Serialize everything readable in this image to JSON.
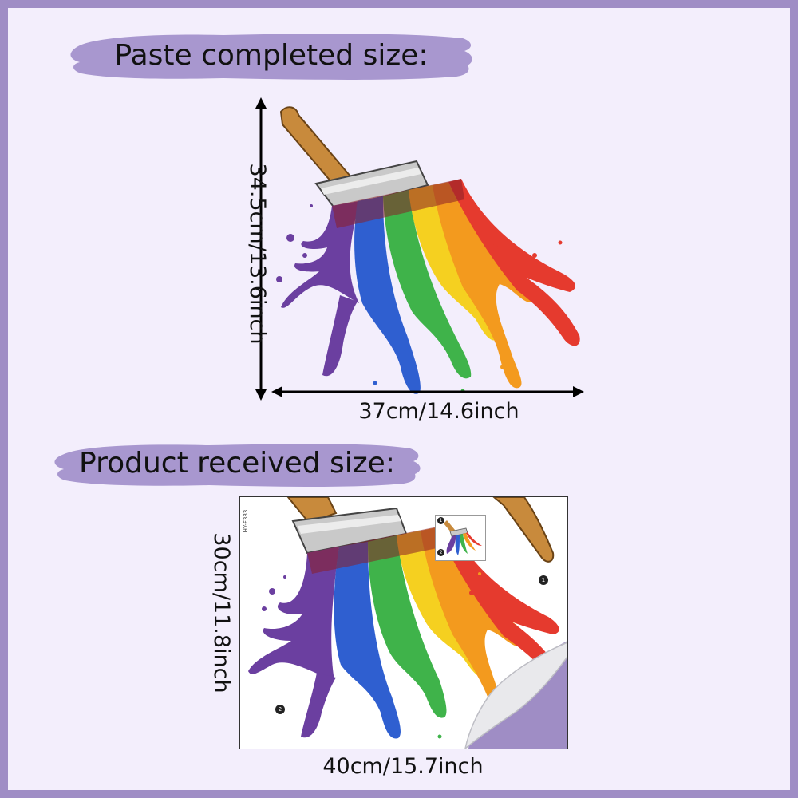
{
  "banners": {
    "top": "Paste completed size:",
    "bottom": "Product  received size:"
  },
  "dimensions": {
    "completed_height": "34.5cm/13.6inch",
    "completed_width": "37cm/14.6inch",
    "received_height": "30cm/11.8inch",
    "received_width": "40cm/15.7inch"
  },
  "sheet": {
    "model_code": "HY-F383",
    "marker_1": "1",
    "marker_2": "2"
  },
  "colors": {
    "border": "#9f8dc5",
    "background": "#f3eefc",
    "banner": "#a897cf",
    "paint": [
      "#6b3fa0",
      "#2f5fd0",
      "#3fb34a",
      "#f5d020",
      "#f39a1e",
      "#e53a2e"
    ],
    "handle": "#c88a3c",
    "ferrule": "#b9b9b9"
  }
}
